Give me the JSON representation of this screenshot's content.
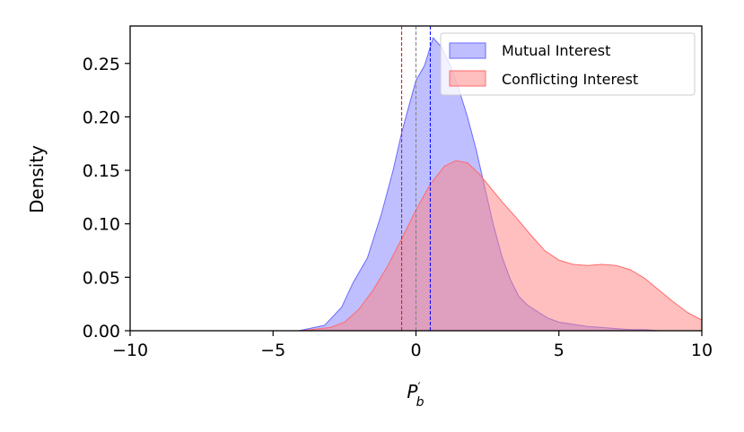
{
  "chart_data": {
    "type": "area",
    "xlabel": "P′b",
    "xlabel_base": "P",
    "xlabel_prime": "′",
    "xlabel_sub": "b",
    "ylabel": "Density",
    "xlim": [
      -10,
      10
    ],
    "ylim": [
      0,
      0.285
    ],
    "x_ticks": [
      -10,
      -5,
      0,
      5,
      10
    ],
    "x_tick_labels": [
      "−10",
      "−5",
      "0",
      "5",
      "10"
    ],
    "y_ticks": [
      0,
      0.05,
      0.1,
      0.15,
      0.2,
      0.25
    ],
    "y_tick_labels": [
      "0.00",
      "0.05",
      "0.10",
      "0.15",
      "0.20",
      "0.25"
    ],
    "legend_position": "top-right",
    "series": [
      {
        "name": "Mutual Interest",
        "color": "#8080ff",
        "edge": "#6a6aff",
        "x": [
          -4.1,
          -3.2,
          -2.6,
          -2.2,
          -1.7,
          -1.2,
          -0.8,
          -0.5,
          -0.3,
          0.0,
          0.3,
          0.6,
          0.9,
          1.2,
          1.5,
          1.8,
          2.1,
          2.4,
          2.7,
          3.0,
          3.3,
          3.6,
          3.9,
          4.3,
          4.6,
          5.0,
          5.5,
          6.0,
          6.5,
          7.0,
          7.5,
          8.0,
          8.5,
          9.0,
          9.5,
          10.0
        ],
        "y": [
          0.0,
          0.005,
          0.022,
          0.045,
          0.068,
          0.11,
          0.15,
          0.185,
          0.205,
          0.234,
          0.248,
          0.274,
          0.265,
          0.248,
          0.226,
          0.2,
          0.17,
          0.135,
          0.1,
          0.07,
          0.048,
          0.032,
          0.024,
          0.017,
          0.012,
          0.008,
          0.006,
          0.004,
          0.003,
          0.002,
          0.001,
          0.001,
          0.0,
          0.0,
          0.0,
          0.0
        ]
      },
      {
        "name": "Conflicting Interest",
        "color": "#ff8080",
        "edge": "#ff6a6a",
        "x": [
          -4.0,
          -3.0,
          -2.5,
          -2.0,
          -1.5,
          -1.0,
          -0.5,
          0.0,
          0.5,
          1.0,
          1.4,
          1.8,
          2.2,
          2.6,
          3.0,
          3.5,
          4.0,
          4.5,
          5.0,
          5.5,
          6.0,
          6.5,
          7.0,
          7.5,
          8.0,
          8.5,
          9.0,
          9.5,
          10.0
        ],
        "y": [
          0.0,
          0.003,
          0.008,
          0.02,
          0.038,
          0.06,
          0.086,
          0.113,
          0.137,
          0.154,
          0.159,
          0.157,
          0.147,
          0.134,
          0.121,
          0.106,
          0.09,
          0.075,
          0.066,
          0.062,
          0.061,
          0.062,
          0.061,
          0.057,
          0.049,
          0.038,
          0.027,
          0.017,
          0.01
        ]
      }
    ],
    "vlines": [
      {
        "x": -0.5,
        "color": "#ff0000"
      },
      {
        "x": 0.0,
        "color": "#808080"
      },
      {
        "x": 0.5,
        "color": "#0000ff"
      }
    ]
  }
}
